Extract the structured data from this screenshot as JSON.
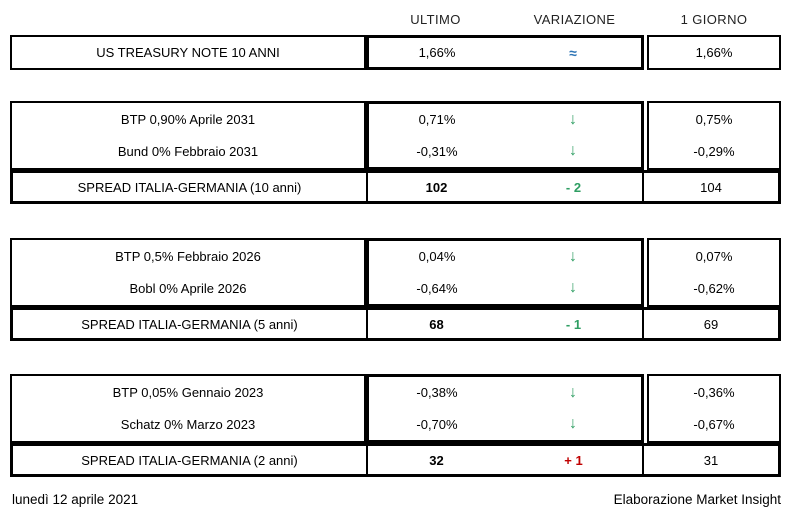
{
  "colors": {
    "down_change": "#2f9e63",
    "up_change": "#c00000",
    "unchanged": "#2e75b6",
    "border": "#000000",
    "text": "#000000",
    "background": "#ffffff"
  },
  "columns": {
    "ultimo": "ULTIMO",
    "variazione": "VARIAZIONE",
    "giorno": "1 GIORNO"
  },
  "treasury_row": {
    "label": "US TREASURY NOTE 10 ANNI",
    "ultimo": "1,66%",
    "variazione_symbol": "≈",
    "variazione_direction": "unchanged",
    "giorno": "1,66%"
  },
  "sections": [
    {
      "bonds": [
        {
          "label": "BTP 0,90% Aprile 2031",
          "ultimo": "0,71%",
          "variazione_symbol": "↓",
          "variazione_direction": "down",
          "giorno": "0,75%"
        },
        {
          "label": "Bund 0% Febbraio 2031",
          "ultimo": "-0,31%",
          "variazione_symbol": "↓",
          "variazione_direction": "down",
          "giorno": "-0,29%"
        }
      ],
      "spread": {
        "label": "SPREAD ITALIA-GERMANIA (10 anni)",
        "ultimo": "102",
        "variazione": "- 2",
        "variazione_direction": "down",
        "giorno": "104"
      }
    },
    {
      "bonds": [
        {
          "label": "BTP 0,5% Febbraio 2026",
          "ultimo": "0,04%",
          "variazione_symbol": "↓",
          "variazione_direction": "down",
          "giorno": "0,07%"
        },
        {
          "label": "Bobl 0% Aprile 2026",
          "ultimo": "-0,64%",
          "variazione_symbol": "↓",
          "variazione_direction": "down",
          "giorno": "-0,62%"
        }
      ],
      "spread": {
        "label": "SPREAD ITALIA-GERMANIA (5 anni)",
        "ultimo": "68",
        "variazione": "- 1",
        "variazione_direction": "down",
        "giorno": "69"
      }
    },
    {
      "bonds": [
        {
          "label": "BTP 0,05% Gennaio 2023",
          "ultimo": "-0,38%",
          "variazione_symbol": "↓",
          "variazione_direction": "down",
          "giorno": "-0,36%"
        },
        {
          "label": "Schatz 0% Marzo 2023",
          "ultimo": "-0,70%",
          "variazione_symbol": "↓",
          "variazione_direction": "down",
          "giorno": "-0,67%"
        }
      ],
      "spread": {
        "label": "SPREAD ITALIA-GERMANIA (2 anni)",
        "ultimo": "32",
        "variazione": "+ 1",
        "variazione_direction": "up",
        "giorno": "31"
      }
    }
  ],
  "footer": {
    "date": "lunedì 12 aprile 2021",
    "credit": "Elaborazione Market Insight"
  }
}
